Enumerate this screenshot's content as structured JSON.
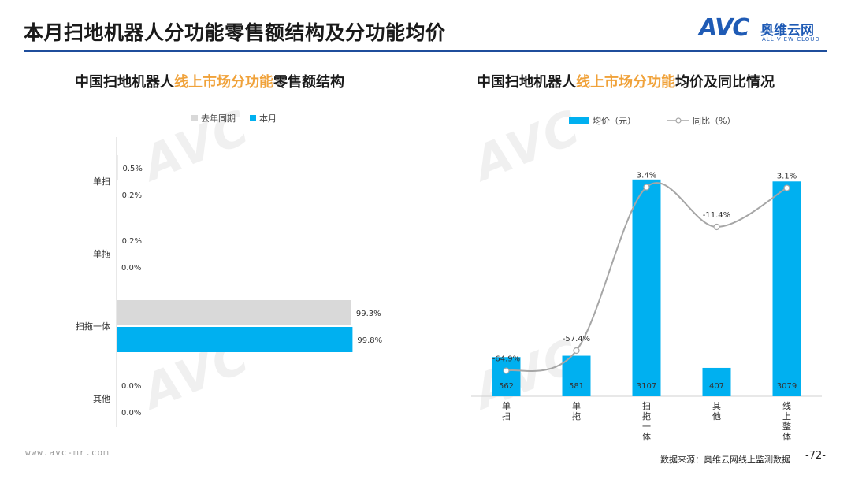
{
  "header": {
    "title": "本月扫地机器人分功能零售额结构及分功能均价",
    "logo_mark": "AVC",
    "logo_cn": "奥维云网",
    "logo_en": "ALL VIEW CLOUD"
  },
  "left_panel": {
    "title_pre": "中国扫地机器人",
    "title_hl": "线上市场分功能",
    "title_post": "零售额结构",
    "legend": [
      {
        "label": "去年同期",
        "color": "#d9d9d9"
      },
      {
        "label": "本月",
        "color": "#00b0f0"
      }
    ]
  },
  "right_panel": {
    "title_pre": "中国扫地机器人",
    "title_hl": "线上市场分功能",
    "title_post": "均价及同比情况",
    "legend": [
      {
        "label": "均价（元）",
        "color": "#00b0f0"
      },
      {
        "label": "同比（%）",
        "color": "#a6a6a6"
      }
    ]
  },
  "chart_data": [
    {
      "type": "bar",
      "orientation": "horizontal",
      "categories": [
        "单扫",
        "单拖",
        "扫拖一体",
        "其他"
      ],
      "series": [
        {
          "name": "去年同期",
          "values": [
            0.5,
            0.2,
            99.3,
            0.0
          ],
          "labels": [
            "0.5%",
            "0.2%",
            "99.3%",
            "0.0%"
          ]
        },
        {
          "name": "本月",
          "values": [
            0.2,
            0.0,
            99.8,
            0.0
          ],
          "labels": [
            "0.2%",
            "0.0%",
            "99.8%",
            "0.0%"
          ]
        }
      ],
      "xlim": [
        0,
        100
      ]
    },
    {
      "type": "bar",
      "categories": [
        "单扫",
        "单拖",
        "扫拖一体",
        "其他",
        "线上整体"
      ],
      "series": [
        {
          "name": "均价（元）",
          "values": [
            562,
            581,
            3107,
            407,
            3079
          ]
        },
        {
          "name": "同比（%）",
          "type": "line",
          "values": [
            -64.9,
            -57.4,
            3.4,
            -11.4,
            3.1
          ],
          "labels": [
            "-64.9%",
            "-57.4%",
            "3.4%",
            "-11.4%",
            "3.1%"
          ]
        }
      ],
      "ylim": [
        0,
        3500
      ]
    }
  ],
  "footer": {
    "website": "www.avc-mr.com",
    "source": "数据来源：奥维云网线上监测数据",
    "page": "-72-"
  }
}
